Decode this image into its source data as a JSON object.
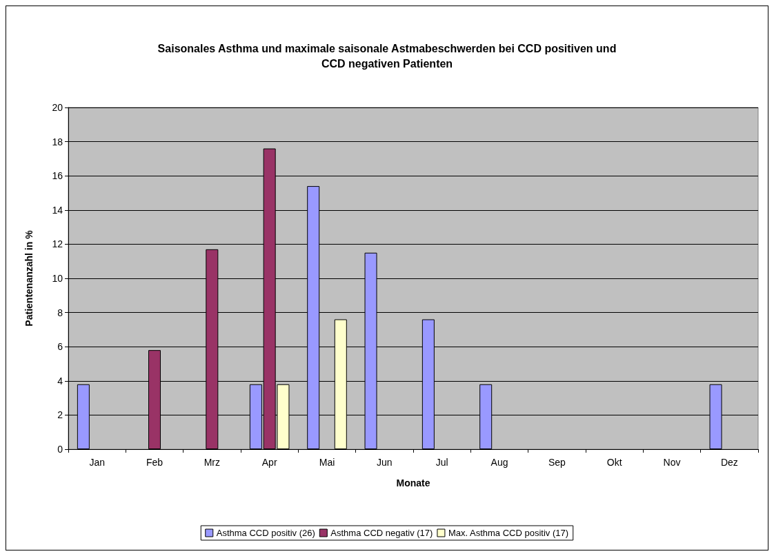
{
  "chart_data": {
    "type": "bar",
    "title": "Saisonales Asthma und maximale saisonale Astmabeschwerden bei CCD positiven und\nCCD negativen Patienten",
    "xlabel": "Monate",
    "ylabel": "Patientenanzahl in %",
    "categories": [
      "Jan",
      "Feb",
      "Mrz",
      "Apr",
      "Mai",
      "Jun",
      "Jul",
      "Aug",
      "Sep",
      "Okt",
      "Nov",
      "Dez"
    ],
    "series": [
      {
        "name": "Asthma CCD positiv (26)",
        "color": "#9999ff",
        "values": [
          3.8,
          null,
          null,
          3.8,
          15.4,
          11.5,
          7.6,
          3.8,
          null,
          null,
          null,
          3.8
        ]
      },
      {
        "name": "Asthma CCD negativ (17)",
        "color": "#993366",
        "values": [
          null,
          5.8,
          11.7,
          17.6,
          null,
          null,
          null,
          null,
          null,
          null,
          null,
          null
        ]
      },
      {
        "name": "Max. Asthma CCD positiv (17)",
        "color": "#ffffcc",
        "values": [
          null,
          null,
          null,
          3.8,
          7.6,
          null,
          null,
          null,
          null,
          null,
          null,
          null
        ]
      }
    ],
    "ylim": [
      0,
      20
    ],
    "yticks": [
      0,
      2,
      4,
      6,
      8,
      10,
      12,
      14,
      16,
      18,
      20
    ],
    "grid": "y",
    "legend": "bottom"
  }
}
